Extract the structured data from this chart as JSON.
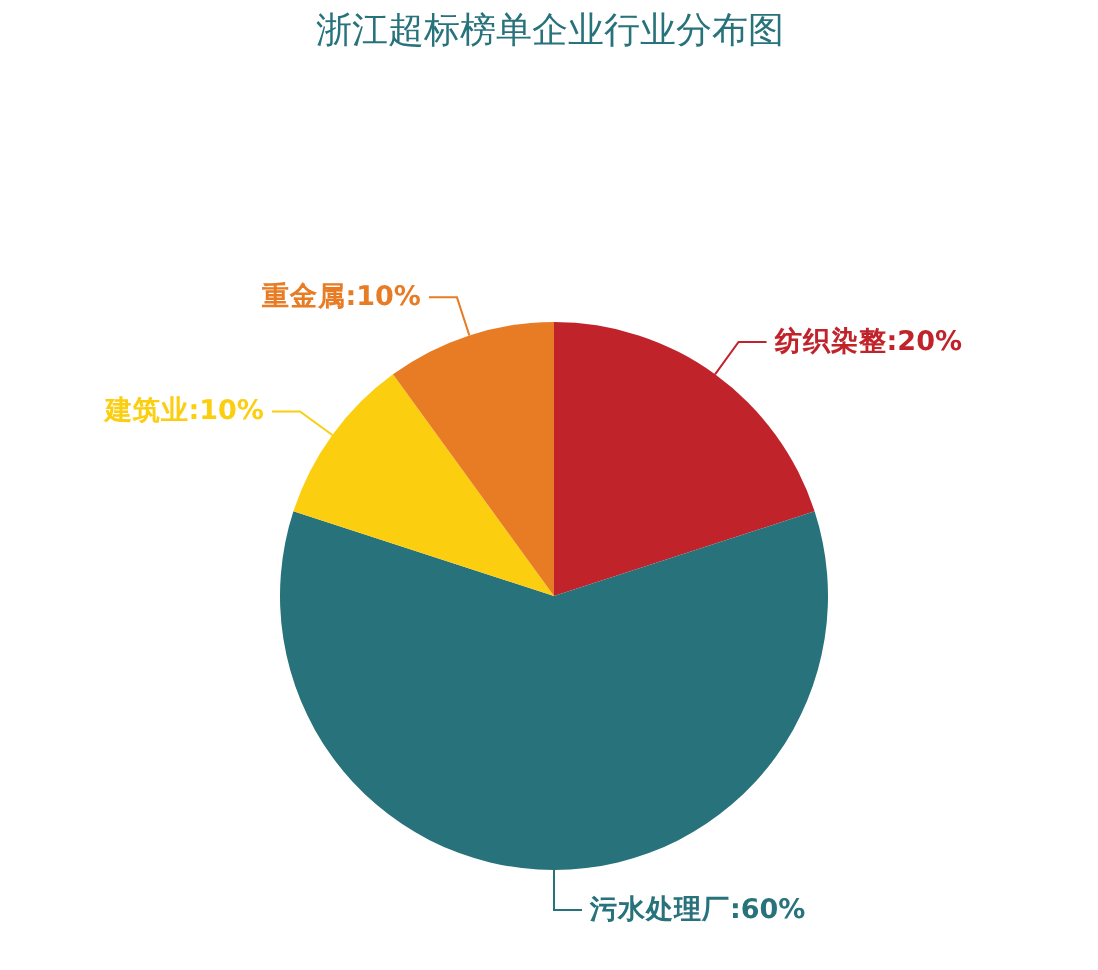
{
  "chart_data": {
    "type": "pie",
    "title": "浙江超标榜单企业行业分布图",
    "categories": [
      "纺织染整",
      "污水处理厂",
      "建筑业",
      "重金属"
    ],
    "values": [
      20,
      60,
      10,
      10
    ],
    "colors": [
      "#c1232b",
      "#27727b",
      "#fcce10",
      "#e87c25"
    ],
    "value_labels": [
      "20%",
      "60%",
      "10%",
      "10%"
    ]
  }
}
